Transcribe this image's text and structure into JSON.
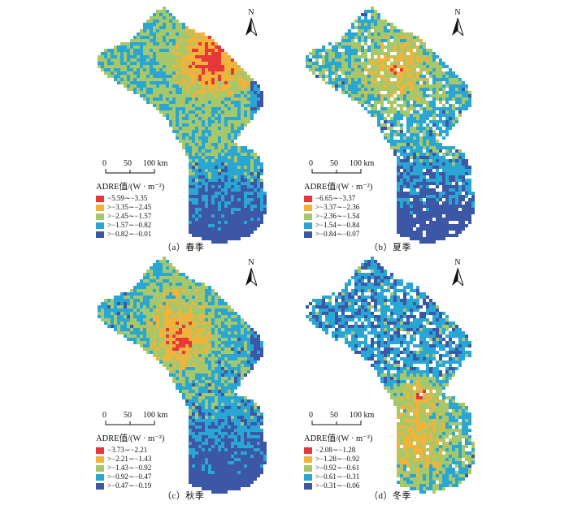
{
  "colors": {
    "class1": "#e8373a",
    "class2": "#f2b33b",
    "class3": "#a6c86a",
    "class4": "#2aa6d5",
    "class5": "#3b57a6",
    "outline": "#2f4f9f"
  },
  "north_label": "N",
  "scale_labels": [
    "0",
    "50",
    "100 km"
  ],
  "legend_title": "ADRE值/(W · m⁻²)",
  "panels": [
    {
      "caption": "（a）春季",
      "legend": [
        "−5.59∼−3.35",
        ">−3.35∼−2.45",
        ">−2.45∼−1.57",
        ">−1.57∼−0.82",
        ">−0.82∼−0.01"
      ]
    },
    {
      "caption": "（b）夏季",
      "legend": [
        "−6.65∼−3.37",
        ">−3.37∼−2.36",
        ">−2.36∼−1.54",
        ">−1.54∼−0.84",
        ">−0.84∼−0.07"
      ]
    },
    {
      "caption": "（c）秋季",
      "legend": [
        "−3.73∼−2.21",
        ">−2.21∼−1.43",
        ">−1.43∼−0.92",
        ">−0.92∼−0.47",
        ">−0.47∼−0.19"
      ]
    },
    {
      "caption": "（d）冬季",
      "legend": [
        "−2.08∼−1.28",
        ">−1.28∼−0.92",
        ">−0.92∼−0.61",
        ">−0.61∼−0.31",
        ">−0.31∼−0.06"
      ]
    }
  ]
}
